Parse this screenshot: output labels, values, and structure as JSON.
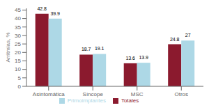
{
  "chart_data": {
    "type": "bar",
    "categories": [
      "Asintomática",
      "Síncope",
      "MSC",
      "Otros"
    ],
    "series": [
      {
        "name": "Totales",
        "color": "#8B1A2E",
        "values": [
          42.8,
          18.7,
          13.6,
          24.8
        ]
      },
      {
        "name": "Primoimplantes",
        "color": "#ADD8E6",
        "values": [
          39.9,
          19.1,
          13.9,
          27
        ]
      }
    ],
    "ylabel": "Arritmias, %",
    "ylim": [
      0,
      46
    ],
    "yticks": [
      0,
      5,
      10,
      15,
      20,
      25,
      30,
      35,
      40,
      45
    ],
    "grid": false,
    "legend": "bottom",
    "data_labels": true
  }
}
